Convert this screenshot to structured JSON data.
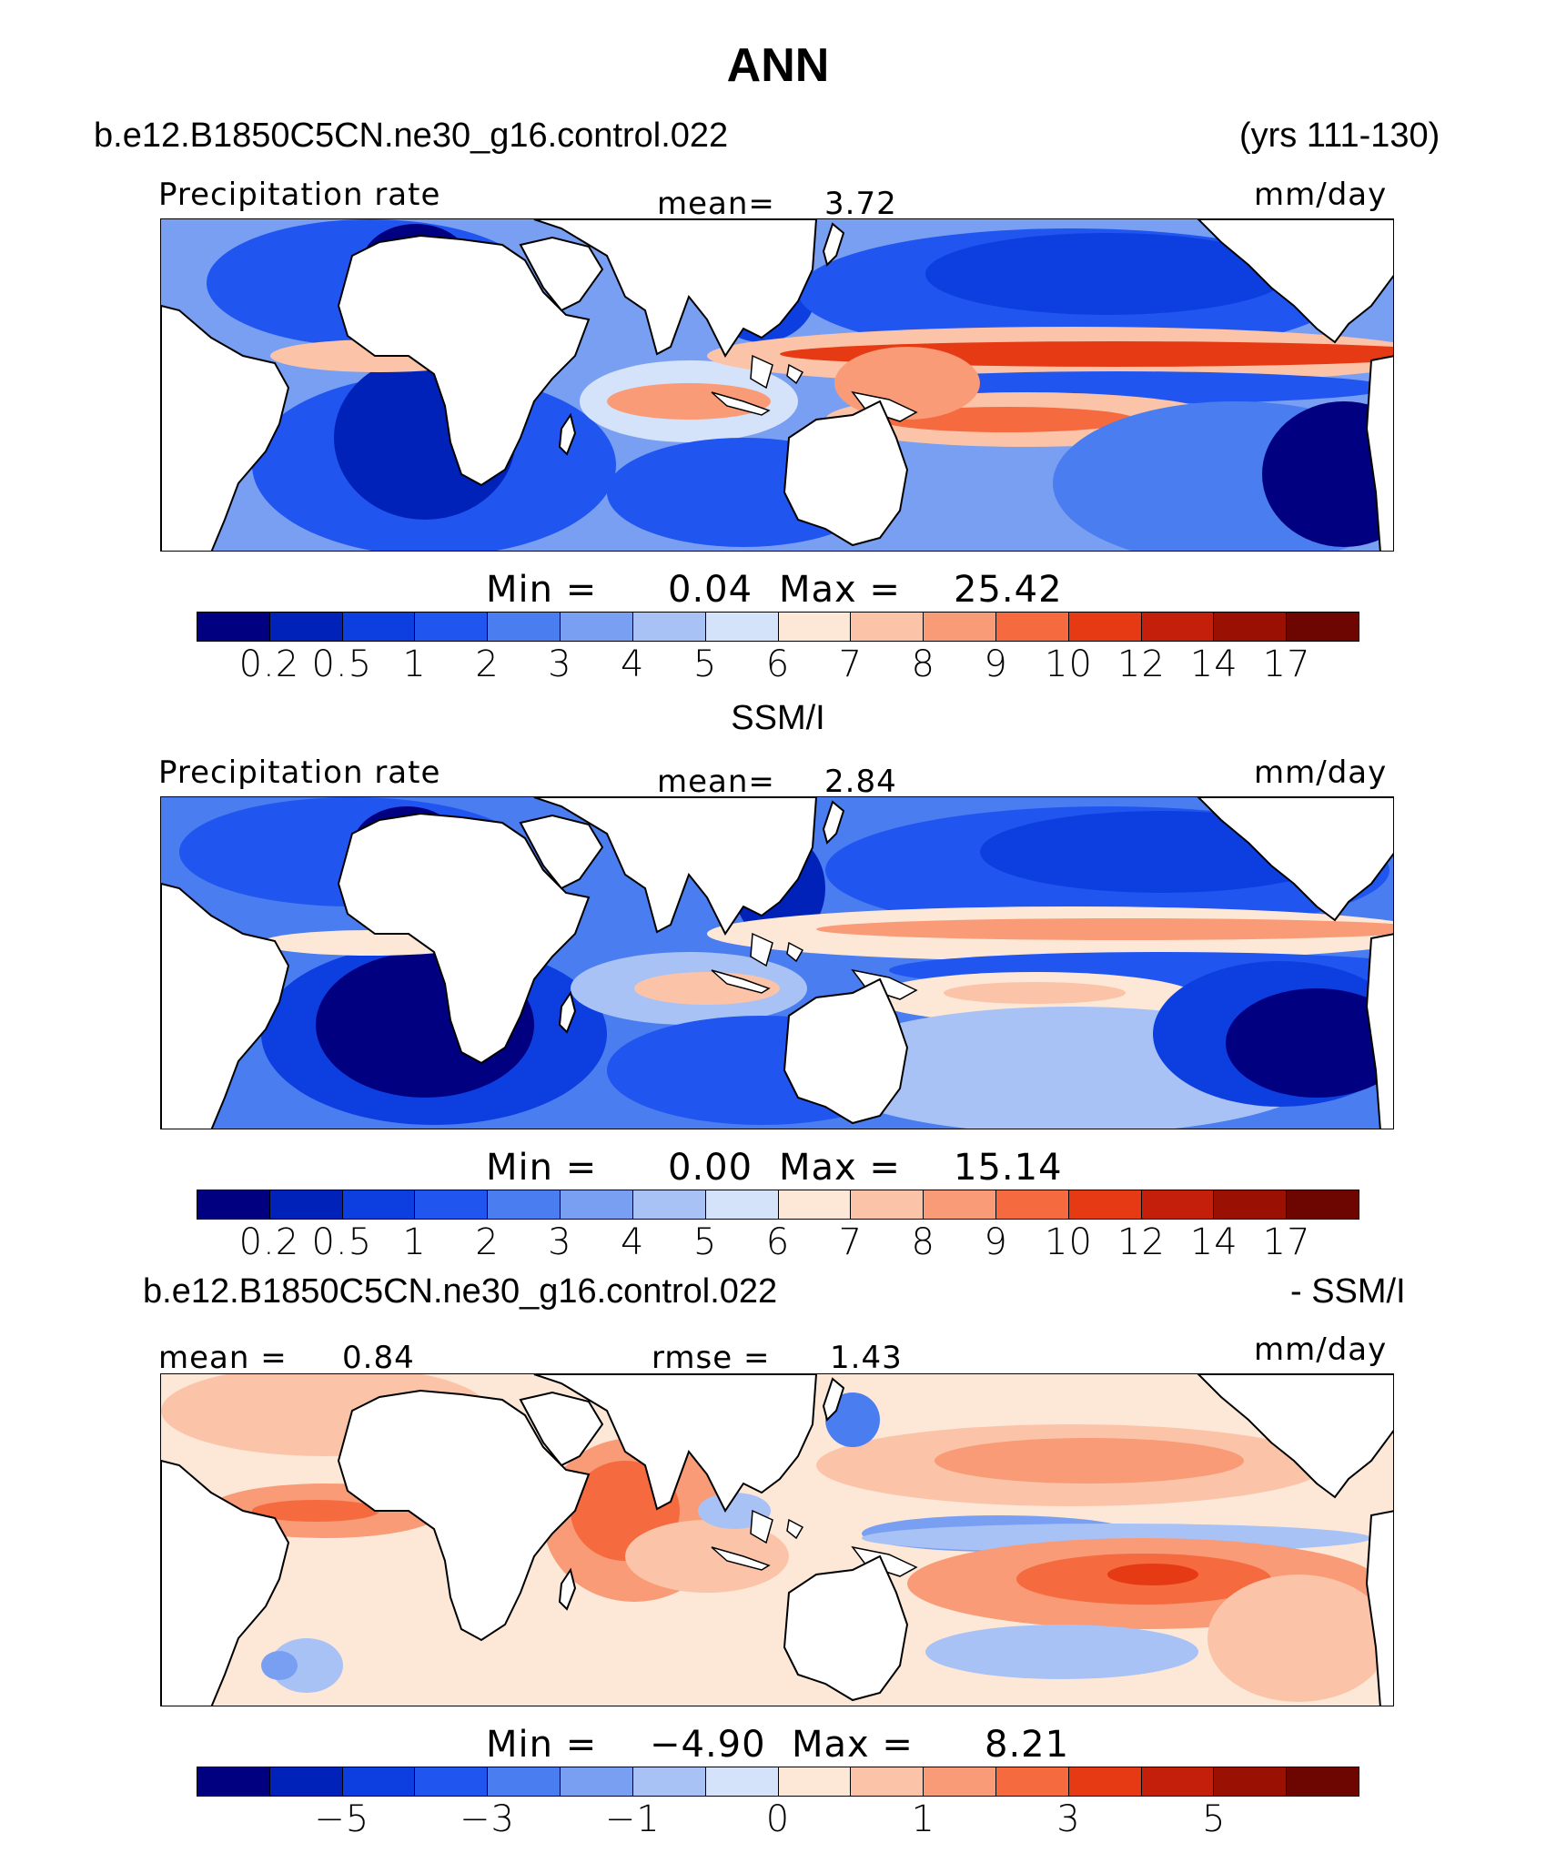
{
  "figure": {
    "title": "ANN",
    "case_name": "b.e12.B1850C5CN.ne30_g16.control.022",
    "years": "(yrs 111-130)",
    "obs_name": "SSM/I",
    "diff_case": "b.e12.B1850C5CN.ne30_g16.control.022",
    "diff_suffix": "- SSM/I"
  },
  "palette": [
    "#000080",
    "#0022b8",
    "#0d3fe0",
    "#2155f0",
    "#4a7df0",
    "#799ff3",
    "#a8c2f6",
    "#d5e3fa",
    "#fde8d8",
    "#fbc4a8",
    "#f89b76",
    "#f56a3f",
    "#e63a15",
    "#c41f0a",
    "#9a1104",
    "#6d0600"
  ],
  "chart_data": [
    {
      "type": "heatmap",
      "panel": "model",
      "variable": "Precipitation rate",
      "units": "mm/day",
      "mean_label": "mean=",
      "mean": "3.72",
      "min_label": "Min  =",
      "min": "0.04",
      "max_label": "Max  =",
      "max": "25.42",
      "levels": [
        "0.2",
        "0.5",
        "1",
        "2",
        "3",
        "4",
        "5",
        "6",
        "7",
        "8",
        "9",
        "10",
        "12",
        "14",
        "17"
      ]
    },
    {
      "type": "heatmap",
      "panel": "obs",
      "variable": "Precipitation rate",
      "units": "mm/day",
      "mean_label": "mean=",
      "mean": "2.84",
      "min_label": "Min  =",
      "min": "0.00",
      "max_label": "Max  =",
      "max": "15.14",
      "levels": [
        "0.2",
        "0.5",
        "1",
        "2",
        "3",
        "4",
        "5",
        "6",
        "7",
        "8",
        "9",
        "10",
        "12",
        "14",
        "17"
      ]
    },
    {
      "type": "heatmap",
      "panel": "difference",
      "units": "mm/day",
      "mean_label": "mean =",
      "mean": "0.84",
      "rmse_label": "rmse =",
      "rmse": "1.43",
      "min_label": "Min  =",
      "min": "−4.90",
      "max_label": "Max  =",
      "max": "8.21",
      "levels": [
        "−5",
        "−3",
        "−1",
        "0",
        "1",
        "3",
        "5"
      ],
      "level_positions": [
        2,
        4,
        6,
        8,
        10,
        12,
        14
      ]
    }
  ]
}
